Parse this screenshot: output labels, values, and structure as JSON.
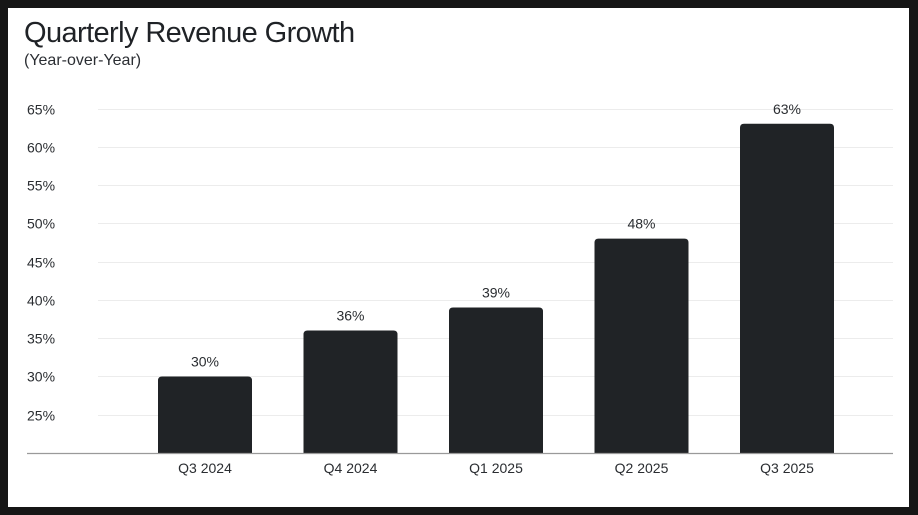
{
  "chart_data": {
    "type": "bar",
    "title": "Quarterly Revenue Growth",
    "subtitle": "(Year-over-Year)",
    "xlabel": "",
    "ylabel": "",
    "categories": [
      "Q3 2024",
      "Q4 2024",
      "Q1 2025",
      "Q2 2025",
      "Q3 2025"
    ],
    "values": [
      30,
      36,
      39,
      48,
      63
    ],
    "data_labels": [
      "30%",
      "36%",
      "39%",
      "48%",
      "63%"
    ],
    "ylim": [
      20,
      65
    ],
    "yticks": [
      25,
      30,
      35,
      40,
      45,
      50,
      55,
      60,
      65
    ],
    "ytick_labels": [
      "25%",
      "30%",
      "35%",
      "40%",
      "45%",
      "50%",
      "55%",
      "60%",
      "65%"
    ],
    "grid": true,
    "legend": "none",
    "colors": {
      "bar": "#202326",
      "grid": "#ececec",
      "baseline": "#9a9a9a",
      "text": "#2a2d31",
      "background": "#ffffff",
      "frame": "#161616"
    }
  }
}
